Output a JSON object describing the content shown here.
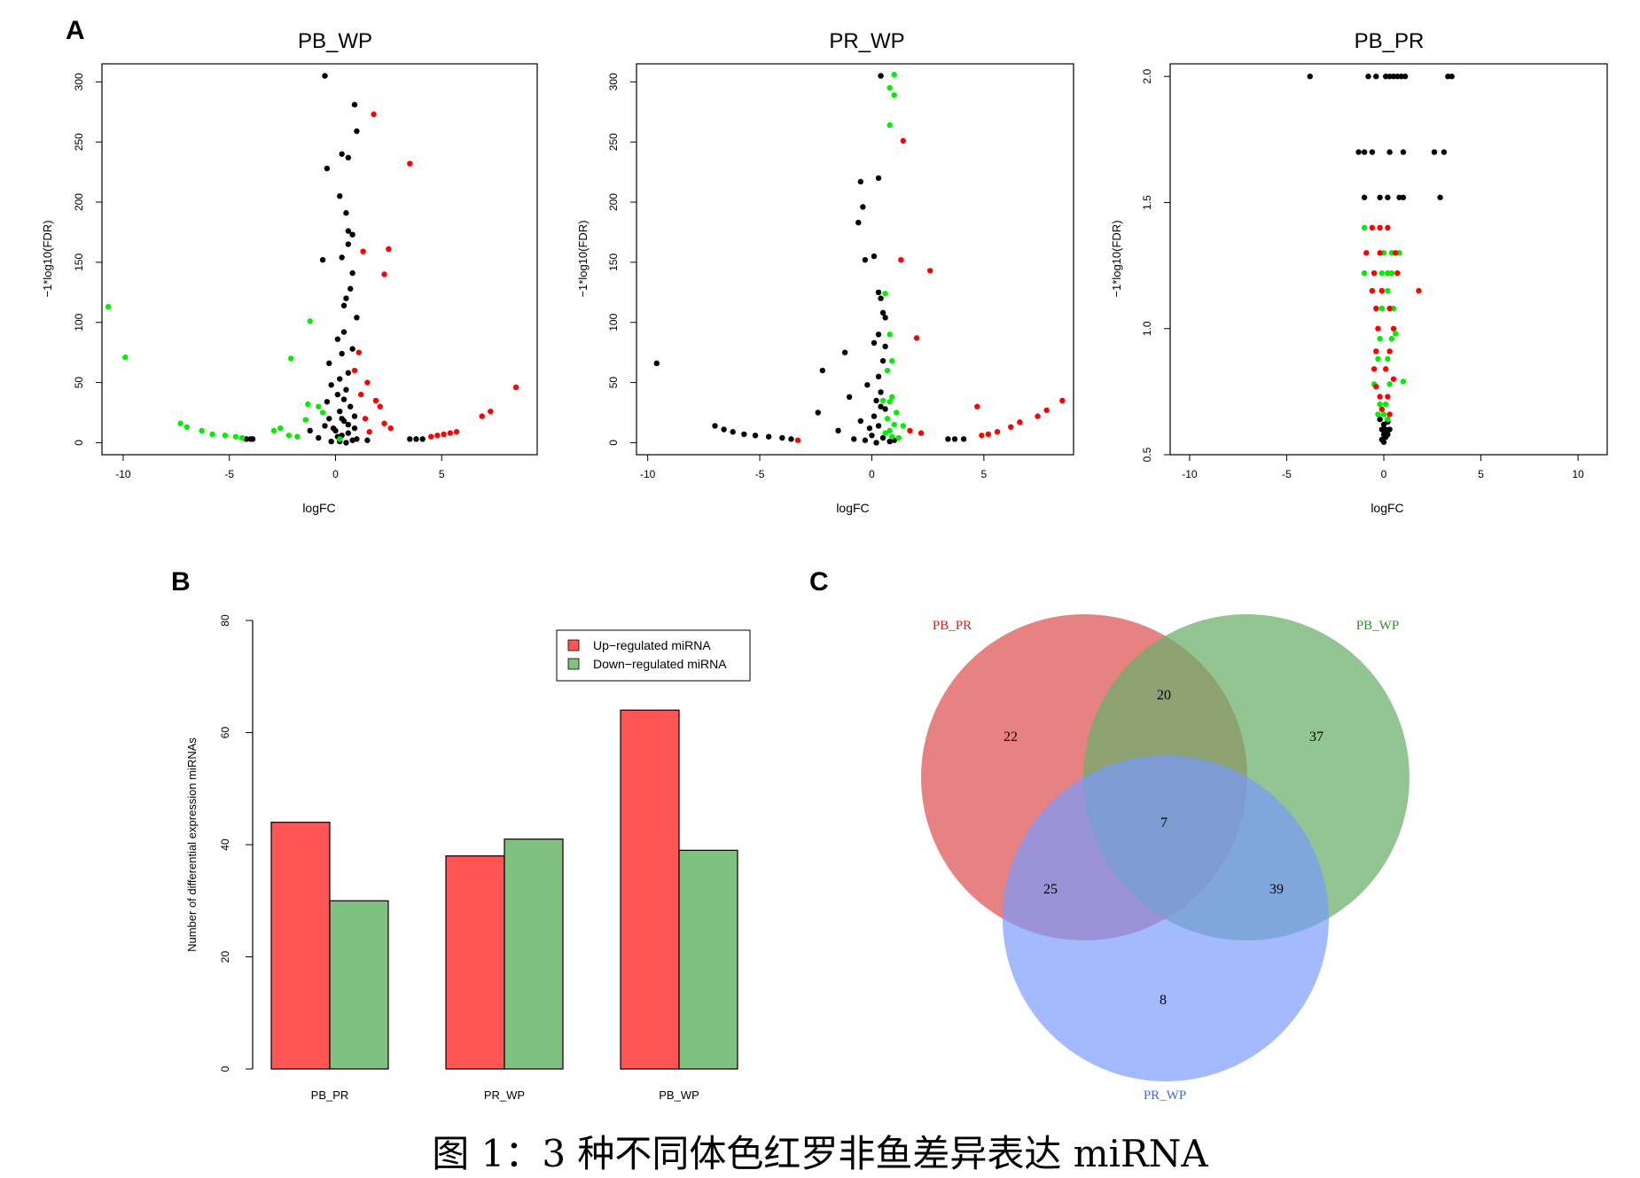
{
  "caption": "图 1：3 种不同体色红罗非鱼差异表达 miRNA",
  "panel_labels": [
    "A",
    "B",
    "C"
  ],
  "colors": {
    "up": "#ff0000",
    "down": "#00ee00",
    "ns": "#000000",
    "bar_up": "#ff5555",
    "bar_down": "#80c080",
    "venn_pb_pr": "#e06666",
    "venn_pb_wp": "#6aaf6a",
    "venn_pr_wp": "#7799ff"
  },
  "chart_data": [
    {
      "type": "scatter",
      "title": "PB_WP",
      "xlabel": "logFC",
      "ylabel": "−1*log10(FDR)",
      "xlim": [
        -11,
        9.5
      ],
      "ylim": [
        -10,
        315
      ],
      "xticks": [
        -10,
        -5,
        0,
        5
      ],
      "yticks": [
        0,
        50,
        100,
        150,
        200,
        250,
        300
      ],
      "points": {
        "ns": [
          [
            -0.5,
            305
          ],
          [
            0.9,
            281
          ],
          [
            1.0,
            259
          ],
          [
            0.3,
            240
          ],
          [
            0.6,
            237
          ],
          [
            -0.4,
            228
          ],
          [
            0.2,
            205
          ],
          [
            0.5,
            191
          ],
          [
            0.6,
            176
          ],
          [
            0.8,
            173
          ],
          [
            0.6,
            165
          ],
          [
            0.3,
            154
          ],
          [
            -0.6,
            152
          ],
          [
            0.8,
            141
          ],
          [
            0.7,
            128
          ],
          [
            0.5,
            120
          ],
          [
            0.4,
            114
          ],
          [
            1.0,
            104
          ],
          [
            0.4,
            92
          ],
          [
            0.1,
            86
          ],
          [
            0.8,
            78
          ],
          [
            0.3,
            74
          ],
          [
            -0.3,
            66
          ],
          [
            0.6,
            58
          ],
          [
            0.2,
            53
          ],
          [
            -0.2,
            48
          ],
          [
            0.5,
            44
          ],
          [
            0.1,
            40
          ],
          [
            -0.4,
            34
          ],
          [
            0.7,
            30
          ],
          [
            0.2,
            26
          ],
          [
            0.9,
            22
          ],
          [
            0.4,
            18
          ],
          [
            -0.5,
            14
          ],
          [
            0.0,
            10
          ],
          [
            0.6,
            8
          ],
          [
            0.3,
            6
          ],
          [
            -0.8,
            4
          ],
          [
            1.0,
            3
          ],
          [
            0.2,
            1
          ],
          [
            -0.2,
            1
          ],
          [
            0.5,
            0
          ],
          [
            0.8,
            2
          ],
          [
            0.1,
            5
          ],
          [
            -0.1,
            12
          ],
          [
            0.6,
            15
          ],
          [
            0.3,
            20
          ],
          [
            -1.2,
            10
          ],
          [
            1.5,
            2
          ],
          [
            0.4,
            36
          ],
          [
            -0.3,
            20
          ],
          [
            0.9,
            12
          ],
          [
            -4.2,
            3
          ],
          [
            -4.0,
            3
          ],
          [
            -3.9,
            3
          ],
          [
            3.5,
            3
          ],
          [
            3.8,
            3
          ],
          [
            4.1,
            3
          ]
        ],
        "up": [
          [
            1.8,
            273
          ],
          [
            3.5,
            232
          ],
          [
            2.5,
            161
          ],
          [
            1.3,
            159
          ],
          [
            2.3,
            140
          ],
          [
            1.1,
            75
          ],
          [
            1.9,
            35
          ],
          [
            2.1,
            30
          ],
          [
            1.4,
            20
          ],
          [
            2.3,
            16
          ],
          [
            2.6,
            12
          ],
          [
            1.6,
            9
          ],
          [
            4.5,
            5
          ],
          [
            4.8,
            6
          ],
          [
            5.1,
            7
          ],
          [
            5.4,
            8
          ],
          [
            5.7,
            9
          ],
          [
            6.9,
            22
          ],
          [
            7.3,
            26
          ],
          [
            8.5,
            46
          ],
          [
            1.2,
            40
          ],
          [
            0.9,
            60
          ],
          [
            1.5,
            50
          ]
        ],
        "down": [
          [
            -10.7,
            113
          ],
          [
            -9.9,
            71
          ],
          [
            -1.2,
            101
          ],
          [
            -2.1,
            70
          ],
          [
            -1.3,
            32
          ],
          [
            -1.4,
            19
          ],
          [
            -7.3,
            16
          ],
          [
            -7.0,
            13
          ],
          [
            -6.3,
            10
          ],
          [
            -5.8,
            7
          ],
          [
            -5.2,
            6
          ],
          [
            -4.7,
            5
          ],
          [
            -4.4,
            4
          ],
          [
            -2.9,
            10
          ],
          [
            -2.6,
            12
          ],
          [
            -2.2,
            6
          ],
          [
            -1.8,
            5
          ],
          [
            -0.6,
            25
          ],
          [
            -0.8,
            30
          ],
          [
            0.2,
            3
          ]
        ]
      }
    },
    {
      "type": "scatter",
      "title": "PR_WP",
      "xlabel": "logFC",
      "ylabel": "−1*log10(FDR)",
      "xlim": [
        -10.5,
        9
      ],
      "ylim": [
        -10,
        315
      ],
      "xticks": [
        -10,
        -5,
        0,
        5
      ],
      "yticks": [
        0,
        50,
        100,
        150,
        200,
        250,
        300
      ],
      "points": {
        "ns": [
          [
            0.4,
            305
          ],
          [
            0.3,
            220
          ],
          [
            -0.5,
            217
          ],
          [
            -0.4,
            196
          ],
          [
            -0.6,
            183
          ],
          [
            0.1,
            155
          ],
          [
            -0.3,
            152
          ],
          [
            0.3,
            125
          ],
          [
            0.4,
            120
          ],
          [
            0.5,
            108
          ],
          [
            0.6,
            104
          ],
          [
            0.3,
            90
          ],
          [
            0.1,
            83
          ],
          [
            -1.2,
            75
          ],
          [
            0.5,
            68
          ],
          [
            0.3,
            55
          ],
          [
            -0.2,
            48
          ],
          [
            0.4,
            42
          ],
          [
            -1.0,
            38
          ],
          [
            0.2,
            35
          ],
          [
            -2.2,
            60
          ],
          [
            -2.4,
            25
          ],
          [
            0.6,
            28
          ],
          [
            0.1,
            22
          ],
          [
            -0.5,
            18
          ],
          [
            0.3,
            14
          ],
          [
            -1.5,
            10
          ],
          [
            0.0,
            6
          ],
          [
            0.5,
            4
          ],
          [
            -0.3,
            2
          ],
          [
            0.2,
            0
          ],
          [
            0.8,
            1
          ],
          [
            -0.8,
            3
          ],
          [
            1.0,
            2
          ],
          [
            -9.6,
            66
          ],
          [
            -7.0,
            14
          ],
          [
            -6.6,
            11
          ],
          [
            -6.2,
            9
          ],
          [
            -5.7,
            7
          ],
          [
            -5.2,
            6
          ],
          [
            -4.6,
            5
          ],
          [
            -4.0,
            4
          ],
          [
            -3.6,
            3
          ],
          [
            3.4,
            3
          ],
          [
            3.7,
            3
          ],
          [
            4.1,
            3
          ],
          [
            0.6,
            80
          ],
          [
            -0.1,
            12
          ],
          [
            0.4,
            30
          ]
        ],
        "up": [
          [
            1.4,
            251
          ],
          [
            1.3,
            152
          ],
          [
            2.6,
            143
          ],
          [
            2.0,
            87
          ],
          [
            4.7,
            30
          ],
          [
            4.9,
            6
          ],
          [
            5.2,
            7
          ],
          [
            5.6,
            9
          ],
          [
            6.2,
            13
          ],
          [
            6.6,
            17
          ],
          [
            7.4,
            22
          ],
          [
            7.8,
            27
          ],
          [
            8.5,
            35
          ],
          [
            2.2,
            8
          ],
          [
            1.7,
            10
          ],
          [
            -3.3,
            2
          ]
        ],
        "down": [
          [
            1.0,
            306
          ],
          [
            0.8,
            295
          ],
          [
            1.0,
            289
          ],
          [
            0.8,
            264
          ],
          [
            0.6,
            124
          ],
          [
            0.8,
            90
          ],
          [
            0.9,
            68
          ],
          [
            0.7,
            60
          ],
          [
            0.9,
            38
          ],
          [
            0.8,
            34
          ],
          [
            1.1,
            25
          ],
          [
            0.7,
            20
          ],
          [
            1.0,
            15
          ],
          [
            0.8,
            10
          ],
          [
            0.9,
            5
          ],
          [
            1.2,
            4
          ],
          [
            0.6,
            8
          ],
          [
            1.4,
            14
          ],
          [
            0.5,
            35
          ]
        ]
      }
    },
    {
      "type": "scatter",
      "title": "PB_PR",
      "xlabel": "logFC",
      "ylabel": "−1*log10(FDR)",
      "xlim": [
        -11,
        11.5
      ],
      "ylim": [
        0.5,
        2.05
      ],
      "xticks": [
        -10,
        -5,
        0,
        5,
        10
      ],
      "yticks": [
        0.5,
        1.0,
        1.5,
        2.0
      ],
      "points": {
        "ns": [
          [
            -3.8,
            2.0
          ],
          [
            -0.8,
            2.0
          ],
          [
            -0.4,
            2.0
          ],
          [
            0.1,
            2.0
          ],
          [
            0.3,
            2.0
          ],
          [
            0.5,
            2.0
          ],
          [
            0.7,
            2.0
          ],
          [
            0.9,
            2.0
          ],
          [
            1.1,
            2.0
          ],
          [
            3.3,
            2.0
          ],
          [
            3.5,
            2.0
          ],
          [
            -1.3,
            1.7
          ],
          [
            -1.0,
            1.7
          ],
          [
            -0.6,
            1.7
          ],
          [
            0.3,
            1.7
          ],
          [
            1.0,
            1.7
          ],
          [
            2.6,
            1.7
          ],
          [
            3.1,
            1.7
          ],
          [
            -1.0,
            1.52
          ],
          [
            -0.2,
            1.52
          ],
          [
            0.2,
            1.52
          ],
          [
            0.8,
            1.52
          ],
          [
            1.0,
            1.52
          ],
          [
            2.9,
            1.52
          ],
          [
            0.0,
            0.62
          ],
          [
            0.1,
            0.6
          ],
          [
            -0.1,
            0.6
          ],
          [
            0.2,
            0.63
          ],
          [
            -0.2,
            0.64
          ],
          [
            0.0,
            0.58
          ],
          [
            0.1,
            0.57
          ],
          [
            0.3,
            0.6
          ],
          [
            -0.1,
            0.56
          ],
          [
            0.0,
            0.55
          ],
          [
            0.2,
            0.58
          ]
        ],
        "up": [
          [
            -0.6,
            1.4
          ],
          [
            -0.2,
            1.4
          ],
          [
            0.2,
            1.4
          ],
          [
            -0.9,
            1.3
          ],
          [
            -0.2,
            1.3
          ],
          [
            0.6,
            1.3
          ],
          [
            -0.5,
            1.22
          ],
          [
            0.7,
            1.22
          ],
          [
            -0.6,
            1.15
          ],
          [
            -0.1,
            1.15
          ],
          [
            1.8,
            1.15
          ],
          [
            -0.4,
            1.08
          ],
          [
            0.3,
            1.08
          ],
          [
            -0.3,
            1.0
          ],
          [
            0.5,
            1.0
          ],
          [
            -0.4,
            0.91
          ],
          [
            0.3,
            0.91
          ],
          [
            -0.5,
            0.84
          ],
          [
            0.1,
            0.84
          ],
          [
            -0.4,
            0.77
          ],
          [
            0.5,
            0.8
          ],
          [
            -0.2,
            0.73
          ],
          [
            0.2,
            0.73
          ],
          [
            -0.1,
            0.68
          ],
          [
            0.3,
            0.66
          ]
        ],
        "down": [
          [
            -1.0,
            1.4
          ],
          [
            0.0,
            1.3
          ],
          [
            0.4,
            1.3
          ],
          [
            0.8,
            1.3
          ],
          [
            -1.0,
            1.22
          ],
          [
            -0.1,
            1.22
          ],
          [
            0.2,
            1.22
          ],
          [
            0.4,
            1.22
          ],
          [
            0.2,
            1.15
          ],
          [
            -0.1,
            1.08
          ],
          [
            0.5,
            1.08
          ],
          [
            0.6,
            0.98
          ],
          [
            -0.2,
            0.96
          ],
          [
            0.4,
            0.96
          ],
          [
            -0.3,
            0.88
          ],
          [
            0.2,
            0.88
          ],
          [
            -0.5,
            0.78
          ],
          [
            0.3,
            0.78
          ],
          [
            1.0,
            0.79
          ],
          [
            -0.2,
            0.7
          ],
          [
            0.1,
            0.7
          ],
          [
            -0.3,
            0.66
          ],
          [
            0.2,
            0.64
          ],
          [
            0.0,
            0.66
          ]
        ]
      }
    },
    {
      "type": "bar",
      "ylabel": "Number of differential expression miRNAs",
      "ylim": [
        0,
        80
      ],
      "yticks": [
        0,
        20,
        40,
        60,
        80
      ],
      "categories": [
        "PB_PR",
        "PR_WP",
        "PB_WP"
      ],
      "series": [
        {
          "name": "Up−regulated miRNA",
          "values": [
            44,
            38,
            64
          ]
        },
        {
          "name": "Down−regulated miRNA",
          "values": [
            30,
            41,
            39
          ]
        }
      ],
      "legend": "top-right"
    },
    {
      "type": "venn",
      "sets": [
        "PB_PR",
        "PB_WP",
        "PR_WP"
      ],
      "regions": {
        "PB_PR_only": "22",
        "PB_WP_only": "37",
        "PR_WP_only": "8",
        "PB_PR_and_PB_WP": "20",
        "PB_PR_and_PR_WP": "25",
        "PB_WP_and_PR_WP": "39",
        "all_three": "7"
      }
    }
  ]
}
